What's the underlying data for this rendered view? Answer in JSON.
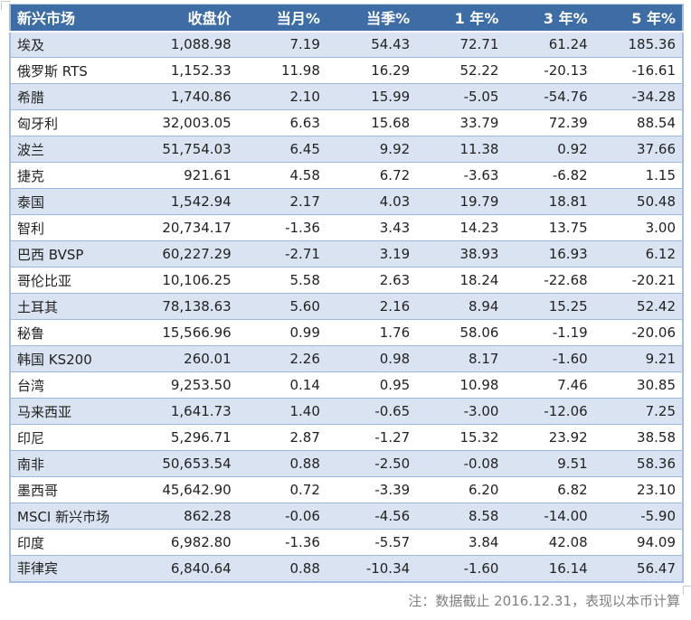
{
  "header": {
    "columns": [
      "新兴市场",
      "收盘价",
      "当月%",
      "当季%",
      "1 年%",
      "3 年%",
      "5 年%"
    ]
  },
  "rows": [
    [
      "埃及",
      "1,088.98",
      "7.19",
      "54.43",
      "72.71",
      "61.24",
      "185.36"
    ],
    [
      "俄罗斯 RTS",
      "1,152.33",
      "11.98",
      "16.29",
      "52.22",
      "-20.13",
      "-16.61"
    ],
    [
      "希腊",
      "1,740.86",
      "2.10",
      "15.99",
      "-5.05",
      "-54.76",
      "-34.28"
    ],
    [
      "匈牙利",
      "32,003.05",
      "6.63",
      "15.68",
      "33.79",
      "72.39",
      "88.54"
    ],
    [
      "波兰",
      "51,754.03",
      "6.45",
      "9.92",
      "11.38",
      "0.92",
      "37.66"
    ],
    [
      "捷克",
      "921.61",
      "4.58",
      "6.72",
      "-3.63",
      "-6.82",
      "1.15"
    ],
    [
      "泰国",
      "1,542.94",
      "2.17",
      "4.03",
      "19.79",
      "18.81",
      "50.48"
    ],
    [
      "智利",
      "20,734.17",
      "-1.36",
      "3.43",
      "14.23",
      "13.75",
      "3.00"
    ],
    [
      "巴西 BVSP",
      "60,227.29",
      "-2.71",
      "3.19",
      "38.93",
      "16.93",
      "6.12"
    ],
    [
      "哥伦比亚",
      "10,106.25",
      "5.58",
      "2.63",
      "18.24",
      "-22.68",
      "-20.21"
    ],
    [
      "土耳其",
      "78,138.63",
      "5.60",
      "2.16",
      "8.94",
      "15.25",
      "52.42"
    ],
    [
      "秘鲁",
      "15,566.96",
      "0.99",
      "1.76",
      "58.06",
      "-1.19",
      "-20.06"
    ],
    [
      "韩国 KS200",
      "260.01",
      "2.26",
      "0.98",
      "8.17",
      "-1.60",
      "9.21"
    ],
    [
      "台湾",
      "9,253.50",
      "0.14",
      "0.95",
      "10.98",
      "7.46",
      "30.85"
    ],
    [
      "马来西亚",
      "1,641.73",
      "1.40",
      "-0.65",
      "-3.00",
      "-12.06",
      "7.25"
    ],
    [
      "印尼",
      "5,296.71",
      "2.87",
      "-1.27",
      "15.32",
      "23.92",
      "38.58"
    ],
    [
      "南非",
      "50,653.54",
      "0.88",
      "-2.50",
      "-0.08",
      "9.51",
      "58.36"
    ],
    [
      "墨西哥",
      "45,642.90",
      "0.72",
      "-3.39",
      "6.20",
      "6.82",
      "23.10"
    ],
    [
      "MSCI 新兴市场",
      "862.28",
      "-0.06",
      "-4.56",
      "8.58",
      "-14.00",
      "-5.90"
    ],
    [
      "印度",
      "6,982.80",
      "-1.36",
      "-5.57",
      "3.84",
      "42.08",
      "94.09"
    ],
    [
      "菲律宾",
      "6,840.64",
      "0.88",
      "-10.34",
      "-1.60",
      "16.14",
      "56.47"
    ]
  ],
  "note": "注：数据截止 2016.12.31，表现以本币计算",
  "colors": {
    "header_bg": "#3E6DA6",
    "header_text": "#FFFFFF",
    "stripe_row": "#DAE3F1",
    "row_border": "#9DB8D9",
    "outer_border": "#A7BEDD",
    "cell_text": "#222222",
    "note_text": "#808080"
  },
  "chart_data": {
    "type": "table",
    "title": "新兴市场指数表现",
    "columns": [
      "新兴市场",
      "收盘价",
      "当月%",
      "当季%",
      "1 年%",
      "3 年%",
      "5 年%"
    ],
    "rows": [
      {
        "market": "埃及",
        "close": 1088.98,
        "month_pct": 7.19,
        "quarter_pct": 54.43,
        "y1_pct": 72.71,
        "y3_pct": 61.24,
        "y5_pct": 185.36
      },
      {
        "market": "俄罗斯 RTS",
        "close": 1152.33,
        "month_pct": 11.98,
        "quarter_pct": 16.29,
        "y1_pct": 52.22,
        "y3_pct": -20.13,
        "y5_pct": -16.61
      },
      {
        "market": "希腊",
        "close": 1740.86,
        "month_pct": 2.1,
        "quarter_pct": 15.99,
        "y1_pct": -5.05,
        "y3_pct": -54.76,
        "y5_pct": -34.28
      },
      {
        "market": "匈牙利",
        "close": 32003.05,
        "month_pct": 6.63,
        "quarter_pct": 15.68,
        "y1_pct": 33.79,
        "y3_pct": 72.39,
        "y5_pct": 88.54
      },
      {
        "market": "波兰",
        "close": 51754.03,
        "month_pct": 6.45,
        "quarter_pct": 9.92,
        "y1_pct": 11.38,
        "y3_pct": 0.92,
        "y5_pct": 37.66
      },
      {
        "market": "捷克",
        "close": 921.61,
        "month_pct": 4.58,
        "quarter_pct": 6.72,
        "y1_pct": -3.63,
        "y3_pct": -6.82,
        "y5_pct": 1.15
      },
      {
        "market": "泰国",
        "close": 1542.94,
        "month_pct": 2.17,
        "quarter_pct": 4.03,
        "y1_pct": 19.79,
        "y3_pct": 18.81,
        "y5_pct": 50.48
      },
      {
        "market": "智利",
        "close": 20734.17,
        "month_pct": -1.36,
        "quarter_pct": 3.43,
        "y1_pct": 14.23,
        "y3_pct": 13.75,
        "y5_pct": 3.0
      },
      {
        "market": "巴西 BVSP",
        "close": 60227.29,
        "month_pct": -2.71,
        "quarter_pct": 3.19,
        "y1_pct": 38.93,
        "y3_pct": 16.93,
        "y5_pct": 6.12
      },
      {
        "market": "哥伦比亚",
        "close": 10106.25,
        "month_pct": 5.58,
        "quarter_pct": 2.63,
        "y1_pct": 18.24,
        "y3_pct": -22.68,
        "y5_pct": -20.21
      },
      {
        "market": "土耳其",
        "close": 78138.63,
        "month_pct": 5.6,
        "quarter_pct": 2.16,
        "y1_pct": 8.94,
        "y3_pct": 15.25,
        "y5_pct": 52.42
      },
      {
        "market": "秘鲁",
        "close": 15566.96,
        "month_pct": 0.99,
        "quarter_pct": 1.76,
        "y1_pct": 58.06,
        "y3_pct": -1.19,
        "y5_pct": -20.06
      },
      {
        "market": "韩国 KS200",
        "close": 260.01,
        "month_pct": 2.26,
        "quarter_pct": 0.98,
        "y1_pct": 8.17,
        "y3_pct": -1.6,
        "y5_pct": 9.21
      },
      {
        "market": "台湾",
        "close": 9253.5,
        "month_pct": 0.14,
        "quarter_pct": 0.95,
        "y1_pct": 10.98,
        "y3_pct": 7.46,
        "y5_pct": 30.85
      },
      {
        "market": "马来西亚",
        "close": 1641.73,
        "month_pct": 1.4,
        "quarter_pct": -0.65,
        "y1_pct": -3.0,
        "y3_pct": -12.06,
        "y5_pct": 7.25
      },
      {
        "market": "印尼",
        "close": 5296.71,
        "month_pct": 2.87,
        "quarter_pct": -1.27,
        "y1_pct": 15.32,
        "y3_pct": 23.92,
        "y5_pct": 38.58
      },
      {
        "market": "南非",
        "close": 50653.54,
        "month_pct": 0.88,
        "quarter_pct": -2.5,
        "y1_pct": -0.08,
        "y3_pct": 9.51,
        "y5_pct": 58.36
      },
      {
        "market": "墨西哥",
        "close": 45642.9,
        "month_pct": 0.72,
        "quarter_pct": -3.39,
        "y1_pct": 6.2,
        "y3_pct": 6.82,
        "y5_pct": 23.1
      },
      {
        "market": "MSCI 新兴市场",
        "close": 862.28,
        "month_pct": -0.06,
        "quarter_pct": -4.56,
        "y1_pct": 8.58,
        "y3_pct": -14.0,
        "y5_pct": -5.9
      },
      {
        "market": "印度",
        "close": 6982.8,
        "month_pct": -1.36,
        "quarter_pct": -5.57,
        "y1_pct": 3.84,
        "y3_pct": 42.08,
        "y5_pct": 94.09
      },
      {
        "market": "菲律宾",
        "close": 6840.64,
        "month_pct": 0.88,
        "quarter_pct": -10.34,
        "y1_pct": -1.6,
        "y3_pct": 16.14,
        "y5_pct": 56.47
      }
    ],
    "footnote": "注：数据截止 2016.12.31，表现以本币计算",
    "layout": {
      "banded_rows": true,
      "first_column_align": "left",
      "numeric_align": "right"
    }
  }
}
